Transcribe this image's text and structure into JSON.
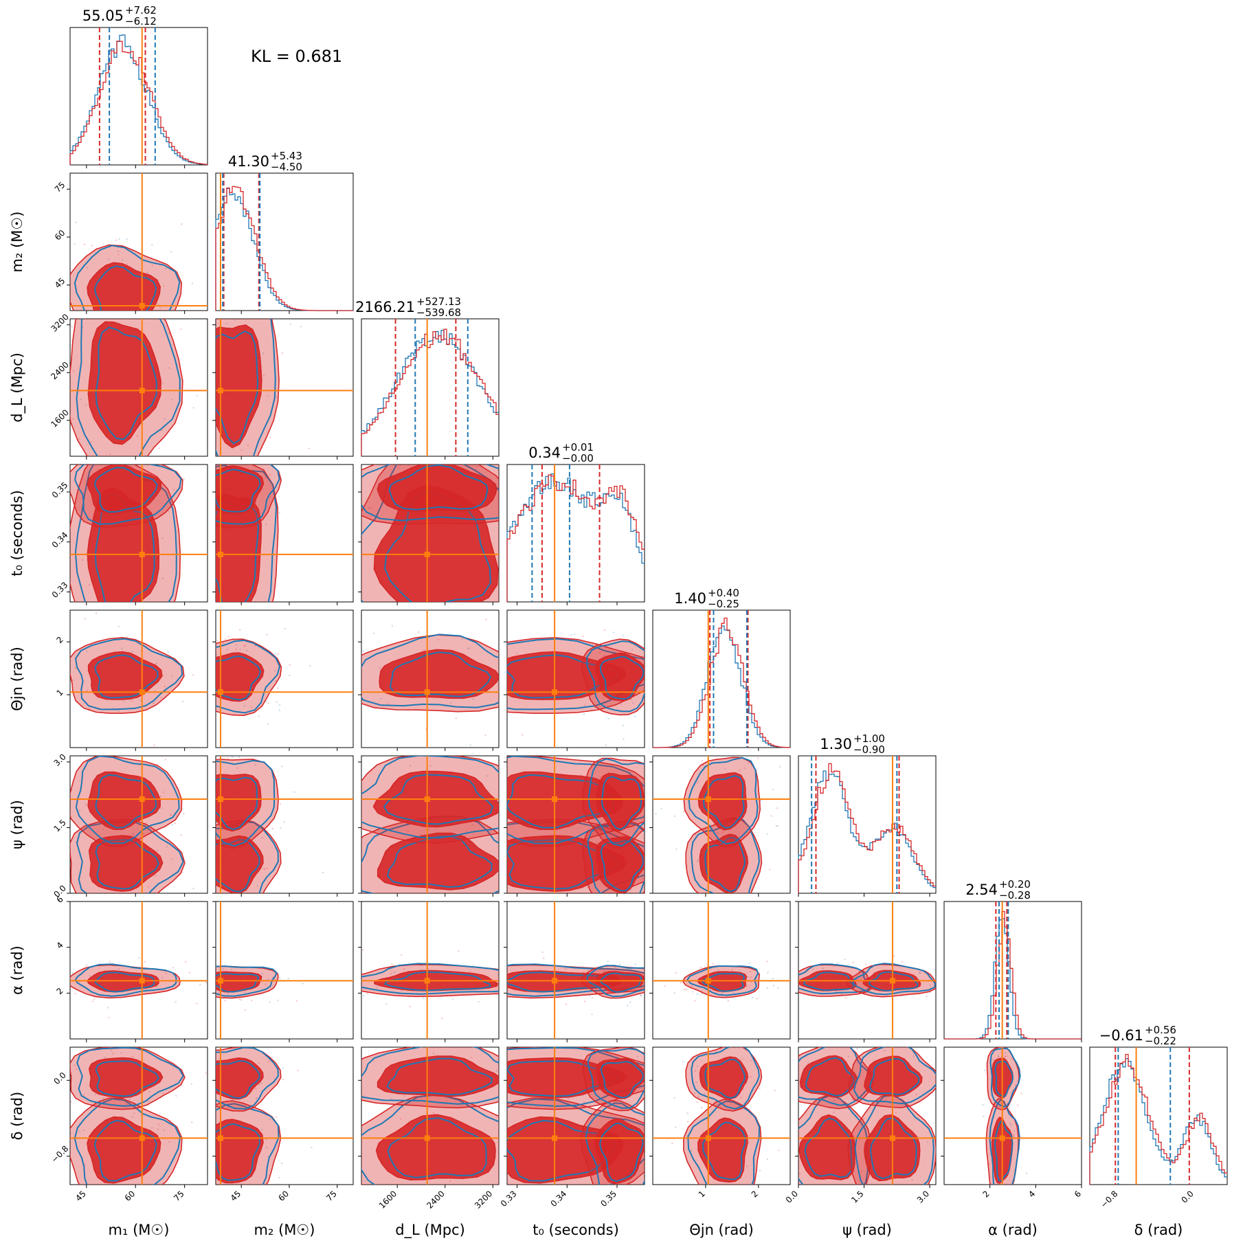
{
  "chart_data": {
    "type": "corner",
    "annotation": "KL = 0.681",
    "colors": {
      "series_a": "#d62728",
      "series_b": "#1f77b4",
      "truth": "#ff7f0e"
    },
    "parameters": [
      {
        "id": "m1",
        "label": "m₁ (M☉)",
        "range": [
          40,
          82
        ],
        "ticks": [
          45,
          60,
          75
        ],
        "truth": 62,
        "title_value": "55.05",
        "title_plus": "+7.62",
        "title_minus": "−6.12",
        "quantiles_a": [
          49.0,
          63.0
        ],
        "quantiles_b": [
          52.0,
          66.0
        ]
      },
      {
        "id": "m2",
        "label": "m₂ (M☉)",
        "range": [
          37,
          80
        ],
        "ticks": [
          45,
          60,
          75
        ],
        "truth": 38.5,
        "title_value": "41.30",
        "title_plus": "+5.43",
        "title_minus": "−4.50",
        "quantiles_a": [
          39.5,
          50.5
        ],
        "quantiles_b": [
          39.2,
          50.8
        ]
      },
      {
        "id": "dL",
        "label": "d_L (Mpc)",
        "range": [
          1000,
          3300
        ],
        "ticks": [
          1600,
          2400,
          3200
        ],
        "truth": 2100,
        "title_value": "2166.21",
        "title_plus": "+527.13",
        "title_minus": "−539.68",
        "quantiles_a": [
          1570,
          2580
        ],
        "quantiles_b": [
          1900,
          2780
        ]
      },
      {
        "id": "t0",
        "label": "t₀ (seconds)",
        "range": [
          0.328,
          0.3555
        ],
        "ticks": [
          0.33,
          0.34,
          0.35
        ],
        "truth": 0.3375,
        "title_value": "0.34",
        "title_plus": "+0.01",
        "title_minus": "−0.00",
        "quantiles_a": [
          0.335,
          0.3465
        ],
        "quantiles_b": [
          0.333,
          0.3405
        ]
      },
      {
        "id": "theta_jn",
        "label": "Θjn (rad)",
        "range": [
          0.0,
          2.6
        ],
        "ticks": [
          1,
          2
        ],
        "truth": 1.05,
        "title_value": "1.40",
        "title_plus": "+0.40",
        "title_minus": "−0.25",
        "quantiles_a": [
          1.08,
          1.8
        ],
        "quantiles_b": [
          1.15,
          1.78
        ]
      },
      {
        "id": "psi",
        "label": "ψ (rad)",
        "range": [
          0.0,
          3.14
        ],
        "ticks": [
          0.0,
          1.5,
          3.0
        ],
        "truth": 2.15,
        "title_value": "1.30",
        "title_plus": "+1.00",
        "title_minus": "−0.90",
        "quantiles_a": [
          0.4,
          2.3
        ],
        "quantiles_b": [
          0.3,
          2.25
        ]
      },
      {
        "id": "alpha",
        "label": "α (rad)",
        "range": [
          0.0,
          6.0
        ],
        "ticks": [
          2,
          4,
          6
        ],
        "truth": 2.54,
        "title_value": "2.54",
        "title_plus": "+0.20",
        "title_minus": "−0.28",
        "quantiles_a": [
          2.26,
          2.74
        ],
        "quantiles_b": [
          2.4,
          2.8
        ]
      },
      {
        "id": "delta",
        "label": "δ (rad)",
        "range": [
          -1.1,
          0.35
        ],
        "ticks": [
          -0.8,
          0.0
        ],
        "truth": -0.61,
        "title_value": "−0.61",
        "title_plus": "+0.56",
        "title_minus": "−0.22",
        "quantiles_a": [
          -0.83,
          -0.05
        ],
        "quantiles_b": [
          -0.8,
          -0.25
        ]
      }
    ],
    "tick_labels": {
      "m1": [
        "45",
        "60",
        "75"
      ],
      "m2": [
        "45",
        "60",
        "75"
      ],
      "dL": [
        "1600",
        "2400",
        "3200"
      ],
      "t0": [
        "0.33",
        "0.34",
        "0.35"
      ],
      "theta_jn": [
        "1",
        "2"
      ],
      "psi": [
        "0.0",
        "1.5",
        "3.0"
      ],
      "alpha": [
        "2",
        "4",
        "6"
      ],
      "delta": [
        "−0.8",
        "0.0"
      ]
    }
  }
}
